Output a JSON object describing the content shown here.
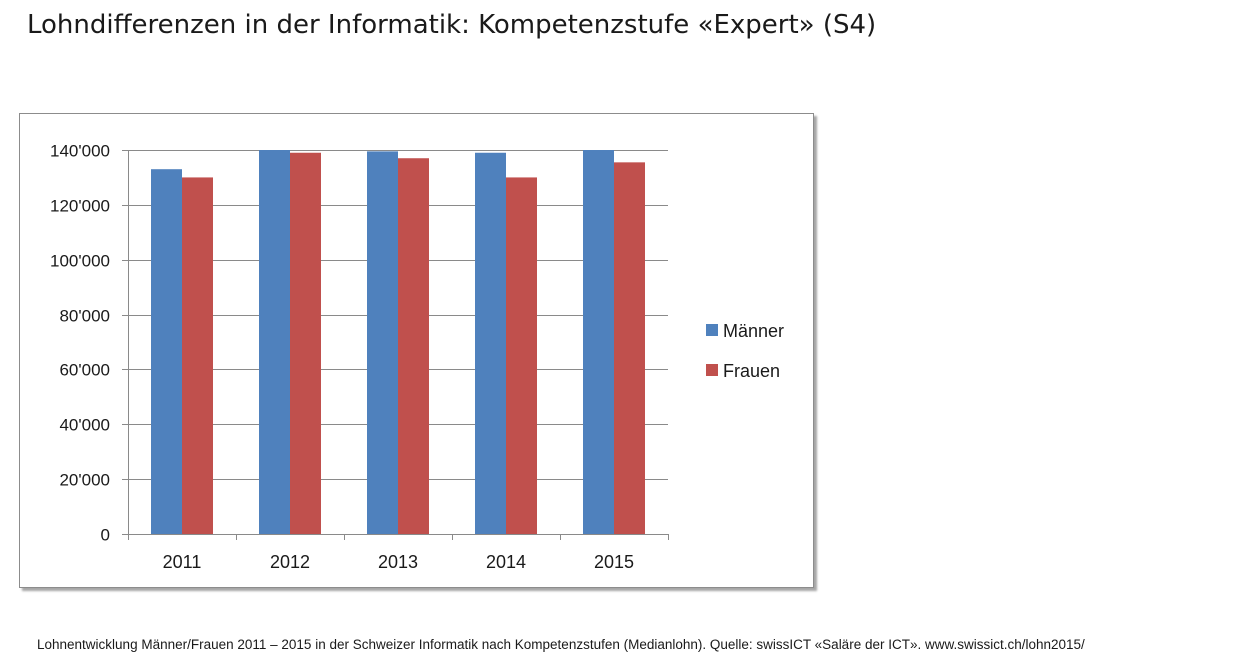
{
  "title": "Lohndifferenzen in der Informatik: Kompetenzstufe «Expert» (S4)",
  "caption": "Lohnentwicklung Männer/Frauen 2011 – 2015 in der Schweizer Informatik nach Kompetenzstufen (Medianlohn). Quelle: swissICT «Saläre der ICT». www.swissict.ch/lohn2015/",
  "chart_data": {
    "type": "bar",
    "title": "",
    "xlabel": "",
    "ylabel": "",
    "categories": [
      "2011",
      "2012",
      "2013",
      "2014",
      "2015"
    ],
    "series": [
      {
        "name": "Männer",
        "color": "#4f81bd",
        "values": [
          133000,
          140000,
          139500,
          139000,
          140000
        ]
      },
      {
        "name": "Frauen",
        "color": "#c0504d",
        "values": [
          130000,
          139000,
          137000,
          130000,
          135500
        ]
      }
    ],
    "ylim": [
      0,
      140000
    ],
    "yticks": [
      0,
      20000,
      40000,
      60000,
      80000,
      100000,
      120000,
      140000
    ],
    "ytick_labels": [
      "0",
      "20'000",
      "40'000",
      "60'000",
      "80'000",
      "100'000",
      "120'000",
      "140'000"
    ],
    "grid": true,
    "legend_position": "right"
  }
}
